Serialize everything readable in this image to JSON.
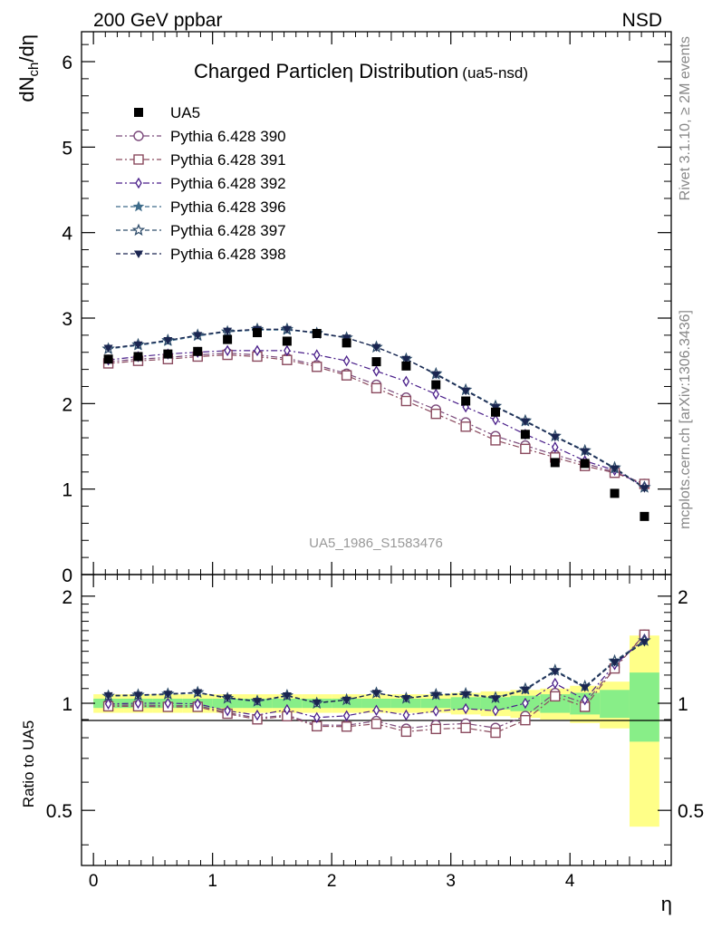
{
  "header": {
    "left": "200 GeV ppbar",
    "right": "NSD"
  },
  "side_labels": {
    "rivet": "Rivet 3.1.10, ≥ 2M events",
    "mcplots": "mcplots.cern.ch [arXiv:1306.3436]"
  },
  "chart_data": {
    "type": "line",
    "title": "Charged Particle",
    "title_symbol": "η",
    "title_rest": " Distribution",
    "title_tag": "(ua5-nsd)",
    "watermark": "UA5_1986_S1583476",
    "xlabel": "η",
    "ylabel": "dN_ch/dη",
    "ratio_ylabel": "Ratio to UA5",
    "xlim": [
      -0.1,
      4.85
    ],
    "ylim": [
      0,
      6.35
    ],
    "ratio_ylim": [
      0.35,
      2.3
    ],
    "x_ticks": [
      "0",
      "1",
      "2",
      "3",
      "4"
    ],
    "y_ticks": [
      "0",
      "1",
      "2",
      "3",
      "4",
      "5",
      "6"
    ],
    "ratio_ticks": [
      "0.5",
      "1",
      "2"
    ],
    "legend_position": "top-left",
    "x": [
      0.125,
      0.375,
      0.625,
      0.875,
      1.125,
      1.375,
      1.625,
      1.875,
      2.125,
      2.375,
      2.625,
      2.875,
      3.125,
      3.375,
      3.625,
      3.875,
      4.125,
      4.375,
      4.625
    ],
    "data": {
      "name": "UA5",
      "values": [
        2.52,
        2.55,
        2.58,
        2.61,
        2.75,
        2.83,
        2.73,
        2.82,
        2.71,
        2.49,
        2.44,
        2.22,
        2.03,
        1.9,
        1.64,
        1.31,
        1.3,
        0.95,
        0.68
      ],
      "band_inner": [
        0.03,
        0.03,
        0.03,
        0.03,
        0.03,
        0.03,
        0.03,
        0.03,
        0.03,
        0.03,
        0.03,
        0.03,
        0.04,
        0.04,
        0.05,
        0.06,
        0.07,
        0.09,
        0.22
      ],
      "band_outer": [
        0.06,
        0.06,
        0.06,
        0.06,
        0.06,
        0.06,
        0.06,
        0.06,
        0.06,
        0.06,
        0.06,
        0.06,
        0.07,
        0.08,
        0.09,
        0.1,
        0.12,
        0.15,
        0.55
      ]
    },
    "series": [
      {
        "name": "Pythia 6.428 390",
        "marker": "circle-open",
        "dash": "dashdot",
        "color": "#7b4a7b",
        "values": [
          2.49,
          2.52,
          2.54,
          2.57,
          2.59,
          2.57,
          2.53,
          2.45,
          2.35,
          2.22,
          2.07,
          1.93,
          1.78,
          1.62,
          1.51,
          1.4,
          1.3,
          1.2,
          1.06
        ]
      },
      {
        "name": "Pythia 6.428 391",
        "marker": "square-open",
        "dash": "dashdot",
        "color": "#8a4a5e",
        "values": [
          2.47,
          2.5,
          2.52,
          2.55,
          2.57,
          2.55,
          2.51,
          2.43,
          2.33,
          2.18,
          2.03,
          1.88,
          1.73,
          1.57,
          1.47,
          1.37,
          1.27,
          1.19,
          1.06
        ]
      },
      {
        "name": "Pythia 6.428 392",
        "marker": "diamond-open",
        "dash": "dashdot",
        "color": "#4a1f8a",
        "values": [
          2.51,
          2.55,
          2.58,
          2.6,
          2.62,
          2.62,
          2.62,
          2.57,
          2.5,
          2.38,
          2.26,
          2.11,
          1.96,
          1.81,
          1.64,
          1.49,
          1.33,
          1.22,
          1.03
        ]
      },
      {
        "name": "Pythia 6.428 396",
        "marker": "star-filled",
        "dash": "dashed",
        "color": "#3d6b8a",
        "values": [
          2.64,
          2.68,
          2.73,
          2.79,
          2.84,
          2.86,
          2.86,
          2.83,
          2.77,
          2.66,
          2.52,
          2.34,
          2.16,
          1.97,
          1.79,
          1.62,
          1.45,
          1.24,
          1.02
        ]
      },
      {
        "name": "Pythia 6.428 397",
        "marker": "star-open",
        "dash": "dashed",
        "color": "#2f4d6b",
        "values": [
          2.64,
          2.69,
          2.74,
          2.8,
          2.84,
          2.87,
          2.87,
          2.82,
          2.77,
          2.66,
          2.52,
          2.35,
          2.16,
          1.97,
          1.8,
          1.62,
          1.45,
          1.25,
          1.02
        ]
      },
      {
        "name": "Pythia 6.428 398",
        "marker": "triangle-down-filled",
        "dash": "dashed",
        "color": "#1a2550",
        "values": [
          2.65,
          2.69,
          2.74,
          2.8,
          2.85,
          2.87,
          2.87,
          2.83,
          2.77,
          2.66,
          2.52,
          2.34,
          2.15,
          1.96,
          1.79,
          1.61,
          1.44,
          1.24,
          1.01
        ]
      }
    ]
  }
}
